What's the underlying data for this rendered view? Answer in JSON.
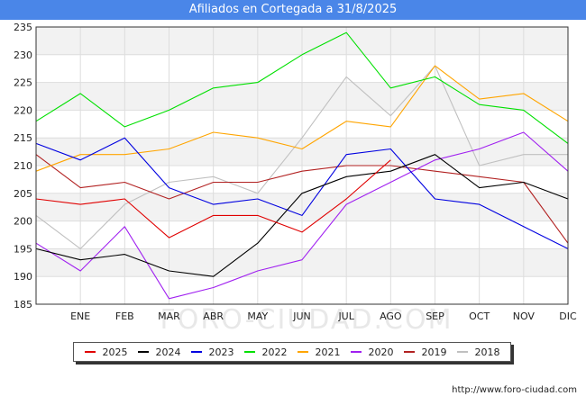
{
  "title": "Afiliados en Cortegada a 31/8/2025",
  "source": "http://www.foro-ciudad.com",
  "watermark": "FORO-CIUDAD.COM",
  "chart_data": {
    "type": "line",
    "title": "Afiliados en Cortegada a 31/8/2025",
    "categories": [
      "",
      "ENE",
      "FEB",
      "MAR",
      "ABR",
      "MAY",
      "JUN",
      "JUL",
      "AGO",
      "SEP",
      "OCT",
      "NOV",
      "DIC"
    ],
    "ylim": [
      185,
      235
    ],
    "yticks": [
      185,
      190,
      195,
      200,
      205,
      210,
      215,
      220,
      225,
      230,
      235
    ],
    "grid": true,
    "series": [
      {
        "name": "2025",
        "color": "#e00000",
        "values": [
          204,
          203,
          204,
          197,
          201,
          201,
          198,
          204,
          211,
          null,
          null,
          null,
          null
        ]
      },
      {
        "name": "2024",
        "color": "#000000",
        "values": [
          195,
          193,
          194,
          191,
          190,
          196,
          205,
          208,
          209,
          212,
          206,
          207,
          204
        ]
      },
      {
        "name": "2023",
        "color": "#0000e0",
        "values": [
          214,
          211,
          215,
          206,
          203,
          204,
          201,
          212,
          213,
          204,
          203,
          199,
          195
        ]
      },
      {
        "name": "2022",
        "color": "#00e000",
        "values": [
          218,
          223,
          217,
          220,
          224,
          225,
          230,
          234,
          224,
          226,
          221,
          220,
          214
        ]
      },
      {
        "name": "2021",
        "color": "#ffa500",
        "values": [
          209,
          212,
          212,
          213,
          216,
          215,
          213,
          218,
          217,
          228,
          222,
          223,
          218
        ]
      },
      {
        "name": "2020",
        "color": "#a020f0",
        "values": [
          196,
          191,
          199,
          186,
          188,
          191,
          193,
          203,
          207,
          211,
          213,
          216,
          209
        ]
      },
      {
        "name": "2019",
        "color": "#b22222",
        "values": [
          212,
          206,
          207,
          204,
          207,
          207,
          209,
          210,
          210,
          209,
          208,
          207,
          196
        ]
      },
      {
        "name": "2018",
        "color": "#c0c0c0",
        "values": [
          201,
          195,
          203,
          207,
          208,
          205,
          215,
          226,
          219,
          228,
          210,
          212,
          212
        ]
      }
    ]
  }
}
